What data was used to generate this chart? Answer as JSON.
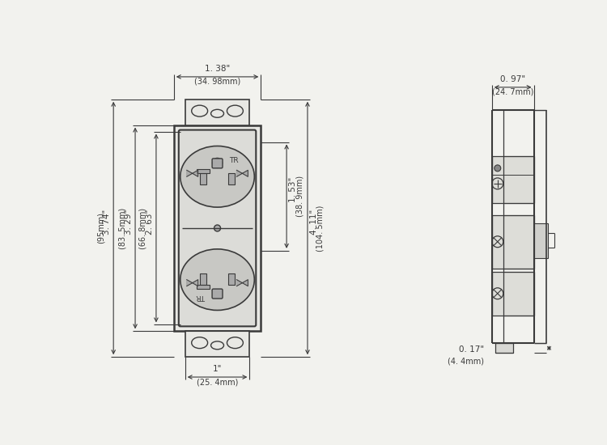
{
  "bg_color": "#f2f2ee",
  "line_color": "#3a3a3a",
  "dims": {
    "top_width_in": "1. 38\"",
    "top_width_mm": "(34. 98mm)",
    "bottom_width_in": "1\"",
    "bottom_width_mm": "(25. 4mm)",
    "height1_in": "3. 74\"",
    "height1_mm": "(95mm)",
    "height2_in": "3. 29\"",
    "height2_mm": "(83. 5mm)",
    "height3_in": "2. 63\"",
    "height3_mm": "(66. 8mm)",
    "right1_in": "1. 53\"",
    "right1_mm": "(38. 9mm)",
    "right2_in": "4. 11\"",
    "right2_mm": "(104. 5mm)",
    "side_width_in": "0. 97\"",
    "side_width_mm": "(24. 7mm)",
    "side_bot_in": "0. 17\"",
    "side_bot_mm": "(4. 4mm)"
  }
}
